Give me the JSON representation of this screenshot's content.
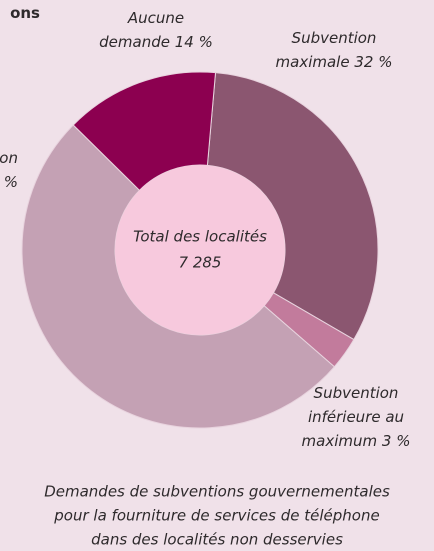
{
  "chart_data": {
    "type": "donut",
    "title": "ons",
    "center_label": [
      "Total des localités",
      "7 285"
    ],
    "categories": [
      [
        "Subvention",
        "maximale"
      ],
      [
        "Subvention",
        "inférieure au",
        "maximum"
      ],
      [
        "ion",
        ""
      ],
      [
        "Aucune",
        "demande"
      ]
    ],
    "values": [
      32,
      3,
      51,
      14
    ],
    "value_labels": [
      "32 %",
      "3 %",
      "%",
      "14 %"
    ],
    "colors": [
      "#8b5670",
      "#c27b9c",
      "#c4a1b4",
      "#8c0050"
    ],
    "caption": [
      "Demandes de subventions gouvernementales",
      "pour la fourniture de services de téléphone",
      "dans des localités non desservies"
    ]
  }
}
